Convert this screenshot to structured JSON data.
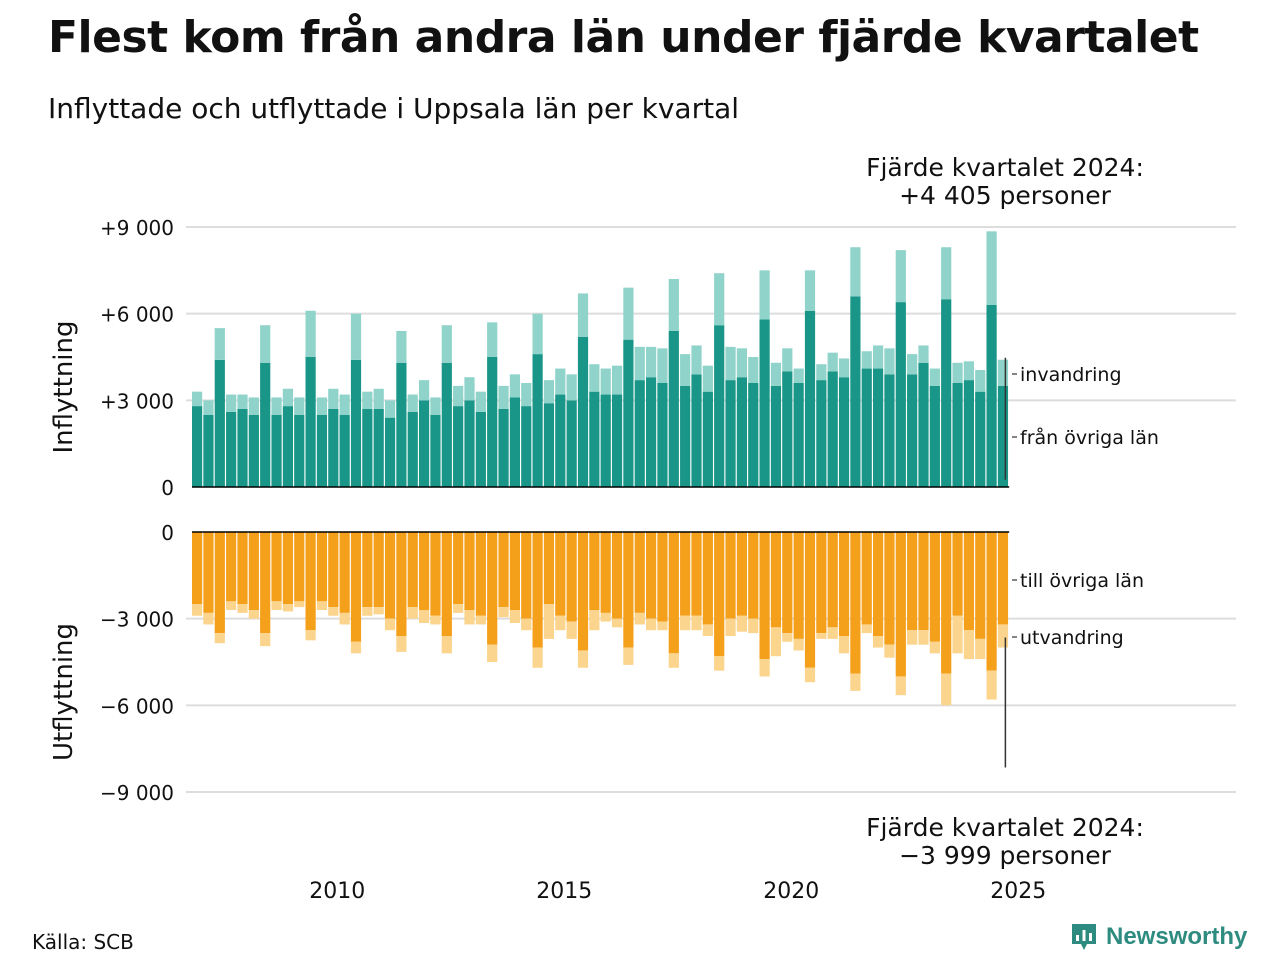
{
  "title": "Flest kom från andra län under fjärde kvartalet",
  "subtitle": "Inflyttade och utflyttade i Uppsala län per kvartal",
  "source": "Källa: SCB",
  "logo": "Newsworthy",
  "colors": {
    "in_domestic": "#1a9688",
    "in_immigration": "#8fd3ca",
    "out_domestic": "#f5a01a",
    "out_emigration": "#fbd48d",
    "grid": "#dddddd",
    "axis": "#000000"
  },
  "chart_data": [
    {
      "type": "bar",
      "stacked": true,
      "panel": "top",
      "ylabel": "Inflyttning",
      "ylim": [
        0,
        9000
      ],
      "yticks": [
        {
          "value": 0,
          "label": "0"
        },
        {
          "value": 3000,
          "label": "+3 000"
        },
        {
          "value": 6000,
          "label": "+6 000"
        },
        {
          "value": 9000,
          "label": "+9 000"
        }
      ],
      "x_start": "2007 Q1",
      "x_ticks": [
        "2010",
        "2015",
        "2020",
        "2025"
      ],
      "annotation": {
        "line1": "Fjärde kvartalet 2024:",
        "line2": "+4 405 personer"
      },
      "series": [
        {
          "name": "från övriga län",
          "values": [
            2800,
            2500,
            4400,
            2600,
            2700,
            2500,
            4300,
            2500,
            2800,
            2500,
            4500,
            2500,
            2700,
            2500,
            4400,
            2700,
            2700,
            2400,
            4300,
            2600,
            3000,
            2500,
            4300,
            2800,
            3000,
            2600,
            4500,
            2700,
            3100,
            2800,
            4600,
            2900,
            3200,
            3000,
            5200,
            3300,
            3200,
            3200,
            5100,
            3700,
            3800,
            3600,
            5400,
            3500,
            3900,
            3300,
            5600,
            3700,
            3800,
            3600,
            5800,
            3500,
            4000,
            3600,
            6100,
            3700,
            4000,
            3800,
            6600,
            4100,
            4100,
            3900,
            6400,
            3900,
            4300,
            3500,
            6500,
            3600,
            3700,
            3300,
            6300,
            3500
          ]
        },
        {
          "name": "invandring",
          "values": [
            500,
            500,
            1100,
            600,
            500,
            600,
            1300,
            600,
            600,
            600,
            1600,
            600,
            700,
            700,
            1600,
            600,
            700,
            600,
            1100,
            600,
            700,
            600,
            1300,
            700,
            800,
            700,
            1200,
            800,
            800,
            800,
            1400,
            800,
            900,
            900,
            1500,
            950,
            900,
            1000,
            1800,
            1150,
            1050,
            1200,
            1800,
            1100,
            1000,
            900,
            1800,
            1150,
            1000,
            900,
            1700,
            800,
            800,
            500,
            1400,
            550,
            650,
            650,
            1700,
            600,
            800,
            900,
            1800,
            700,
            600,
            600,
            1800,
            700,
            650,
            750,
            2550,
            905
          ]
        }
      ]
    },
    {
      "type": "bar",
      "stacked": true,
      "panel": "bottom",
      "ylabel": "Utflyttning",
      "ylim": [
        -9000,
        0
      ],
      "yticks": [
        {
          "value": 0,
          "label": "0"
        },
        {
          "value": -3000,
          "label": "−3 000"
        },
        {
          "value": -6000,
          "label": "−6 000"
        },
        {
          "value": -9000,
          "label": "−9 000"
        }
      ],
      "x_start": "2007 Q1",
      "annotation": {
        "line1": "Fjärde kvartalet 2024:",
        "line2": "−3 999 personer"
      },
      "series": [
        {
          "name": "till övriga län",
          "values": [
            -2500,
            -2800,
            -3500,
            -2400,
            -2500,
            -2700,
            -3500,
            -2400,
            -2500,
            -2400,
            -3400,
            -2400,
            -2600,
            -2800,
            -3800,
            -2600,
            -2600,
            -3000,
            -3600,
            -2600,
            -2700,
            -2900,
            -3600,
            -2500,
            -2700,
            -2900,
            -3900,
            -2600,
            -2700,
            -3000,
            -4000,
            -2500,
            -2900,
            -3100,
            -4100,
            -2700,
            -2800,
            -3000,
            -4000,
            -2800,
            -3000,
            -3100,
            -4200,
            -2900,
            -2900,
            -3200,
            -4300,
            -3000,
            -2900,
            -3000,
            -4400,
            -3300,
            -3500,
            -3700,
            -4700,
            -3500,
            -3300,
            -3600,
            -4900,
            -3200,
            -3600,
            -3900,
            -5000,
            -3400,
            -3400,
            -3800,
            -4900,
            -2900,
            -3400,
            -3700,
            -4800,
            -3200
          ]
        },
        {
          "name": "utvandring",
          "values": [
            -400,
            -400,
            -350,
            -300,
            -300,
            -300,
            -450,
            -300,
            -250,
            -200,
            -350,
            -300,
            -300,
            -400,
            -400,
            -300,
            -250,
            -400,
            -550,
            -400,
            -450,
            -300,
            -600,
            -300,
            -500,
            -300,
            -600,
            -350,
            -450,
            -400,
            -700,
            -1200,
            -500,
            -600,
            -600,
            -700,
            -300,
            -300,
            -600,
            -400,
            -400,
            -300,
            -500,
            -500,
            -500,
            -400,
            -500,
            -600,
            -550,
            -500,
            -600,
            -1000,
            -300,
            -400,
            -500,
            -200,
            -400,
            -600,
            -600,
            -300,
            -400,
            -450,
            -650,
            -500,
            -500,
            -400,
            -1100,
            -1300,
            -1000,
            -700,
            -1000,
            -799
          ]
        }
      ]
    }
  ]
}
